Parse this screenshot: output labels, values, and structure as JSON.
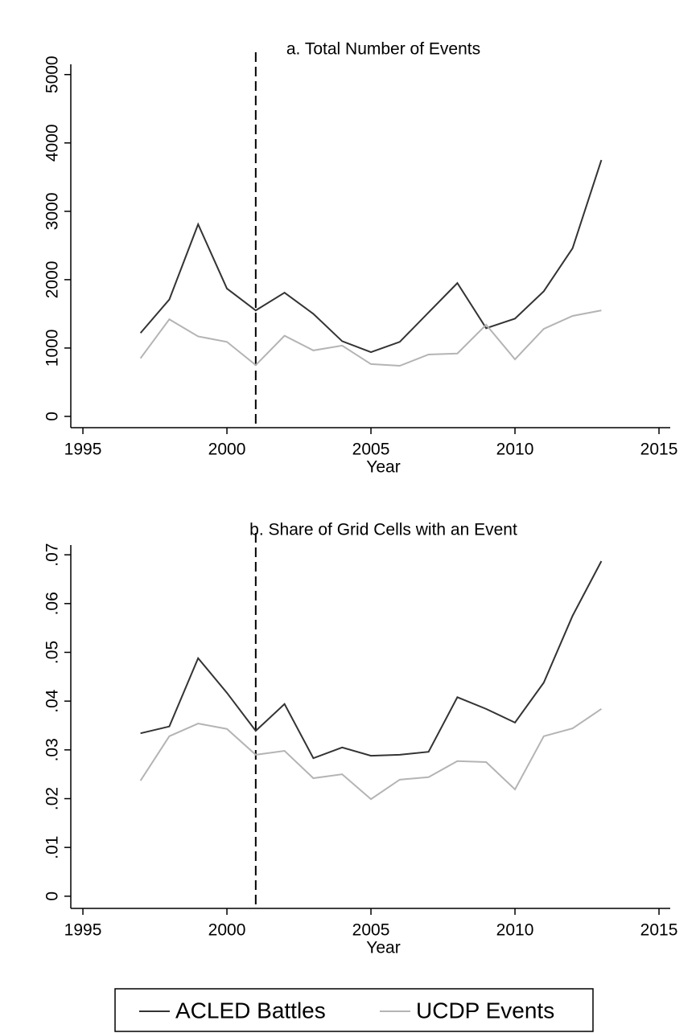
{
  "chart_data": [
    {
      "type": "line",
      "title": "a. Total Number of Events",
      "x_label": "Year",
      "x": [
        1997,
        1998,
        1999,
        2000,
        2001,
        2002,
        2003,
        2004,
        2005,
        2006,
        2007,
        2008,
        2009,
        2010,
        2011,
        2012,
        2013
      ],
      "series": [
        {
          "name": "ACLED Battles",
          "color": "#333333",
          "values": [
            1220,
            1710,
            2810,
            1870,
            1550,
            1810,
            1500,
            1100,
            940,
            1090,
            1520,
            1950,
            1290,
            1430,
            1830,
            2460,
            3750
          ]
        },
        {
          "name": "UCDP Events",
          "color": "#b4b4b4",
          "values": [
            850,
            1420,
            1170,
            1090,
            750,
            1180,
            965,
            1035,
            765,
            740,
            905,
            920,
            1340,
            835,
            1280,
            1470,
            1550
          ]
        }
      ],
      "xlim": [
        1994.58,
        2015.39
      ],
      "xticks": [
        1995,
        2000,
        2005,
        2010,
        2015
      ],
      "ylim": [
        -165,
        5150
      ],
      "yticks": [
        0,
        1000,
        2000,
        3000,
        4000,
        5000
      ],
      "vline_x": 2001
    },
    {
      "type": "line",
      "title": "b. Share of Grid Cells with an Event",
      "x_label": "Year",
      "x": [
        1997,
        1998,
        1999,
        2000,
        2001,
        2002,
        2003,
        2004,
        2005,
        2006,
        2007,
        2008,
        2009,
        2010,
        2011,
        2012,
        2013
      ],
      "series": [
        {
          "color": "#333333",
          "values": [
            0.0334,
            0.0348,
            0.0488,
            0.0417,
            0.0339,
            0.0394,
            0.0283,
            0.0305,
            0.0288,
            0.029,
            0.0296,
            0.0408,
            0.0384,
            0.0356,
            0.0438,
            0.0575,
            0.0687
          ]
        },
        {
          "color": "#b4b4b4",
          "values": [
            0.0237,
            0.0328,
            0.0354,
            0.0343,
            0.029,
            0.0298,
            0.0242,
            0.025,
            0.0199,
            0.0239,
            0.0244,
            0.0277,
            0.0275,
            0.0219,
            0.0328,
            0.0344,
            0.0384
          ]
        }
      ],
      "xlim": [
        1994.58,
        2015.39
      ],
      "xticks": [
        1995,
        2000,
        2005,
        2010,
        2015
      ],
      "ylim": [
        -0.0025,
        0.072
      ],
      "yticks": [
        0,
        {
          "value": 0.01,
          "label": ".01"
        },
        {
          "value": 0.02,
          "label": ".02"
        },
        {
          "value": 0.03,
          "label": ".03"
        },
        {
          "value": 0.04,
          "label": ".04"
        },
        {
          "value": 0.05,
          "label": ".05"
        },
        {
          "value": 0.06,
          "label": ".06"
        },
        {
          "value": 0.07,
          "label": ".07"
        }
      ],
      "vline_x": 2001
    }
  ]
}
